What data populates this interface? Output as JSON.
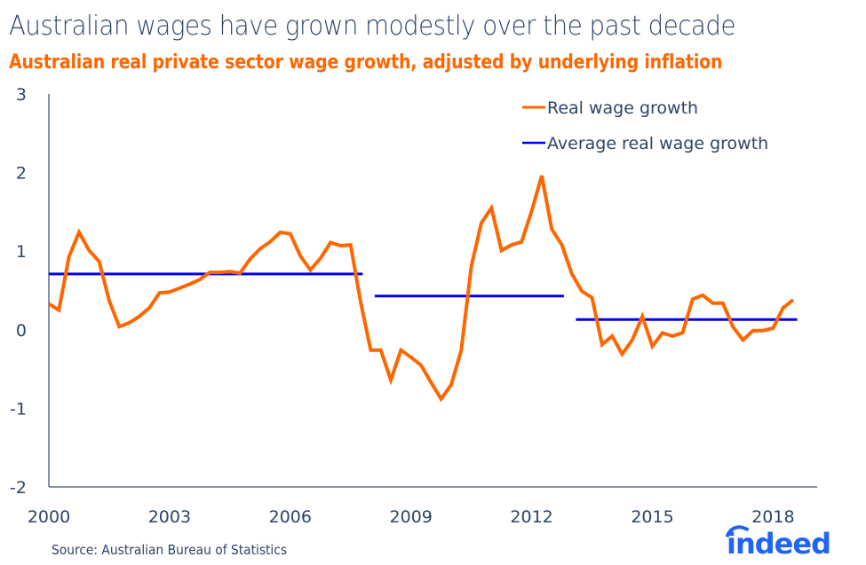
{
  "header": {
    "title": "Australian wages have grown modestly over the past decade",
    "subtitle": "Australian real private sector wage growth, adjusted by underlying inflation"
  },
  "footer": {
    "source": "Source: Australian Bureau of Statistics",
    "logo_text": "indeed",
    "logo_color": "#2164f3"
  },
  "chart_data": {
    "type": "line",
    "title": "Australian real private sector wage growth, adjusted by underlying inflation",
    "xlabel": "",
    "ylabel": "",
    "ylim": [
      -2,
      3
    ],
    "xlim": [
      2000.0,
      2019.0
    ],
    "yticks": [
      "3",
      "2",
      "1",
      "0",
      "-1",
      "-2"
    ],
    "ytick_values": [
      3,
      2,
      1,
      0,
      -1,
      -2
    ],
    "xticks": [
      "2000",
      "2003",
      "2006",
      "2009",
      "2012",
      "2015",
      "2018"
    ],
    "xtick_values": [
      2000,
      2003,
      2006,
      2009,
      2012,
      2015,
      2018
    ],
    "grid": false,
    "legend": {
      "position": "top-right",
      "entries": [
        "Real wage growth",
        "Average real wage growth"
      ]
    },
    "series": [
      {
        "name": "Real wage growth",
        "color": "#ff6600",
        "x": [
          2000.0,
          2000.25,
          2000.5,
          2000.75,
          2001.0,
          2001.25,
          2001.5,
          2001.75,
          2002.0,
          2002.25,
          2002.5,
          2002.75,
          2003.0,
          2003.25,
          2003.5,
          2003.75,
          2004.0,
          2004.25,
          2004.5,
          2004.75,
          2005.0,
          2005.25,
          2005.5,
          2005.75,
          2006.0,
          2006.25,
          2006.5,
          2006.75,
          2007.0,
          2007.25,
          2007.5,
          2007.75,
          2008.0,
          2008.25,
          2008.5,
          2008.75,
          2009.0,
          2009.25,
          2009.5,
          2009.75,
          2010.0,
          2010.25,
          2010.5,
          2010.75,
          2011.0,
          2011.25,
          2011.5,
          2011.75,
          2012.0,
          2012.25,
          2012.5,
          2012.75,
          2013.0,
          2013.25,
          2013.5,
          2013.75,
          2014.0,
          2014.25,
          2014.5,
          2014.75,
          2015.0,
          2015.25,
          2015.5,
          2015.75,
          2016.0,
          2016.25,
          2016.5,
          2016.75,
          2017.0,
          2017.25,
          2017.5,
          2017.75,
          2018.0,
          2018.25,
          2018.5
        ],
        "values": [
          0.33,
          0.25,
          0.93,
          1.24,
          1.01,
          0.87,
          0.37,
          0.04,
          0.09,
          0.17,
          0.28,
          0.47,
          0.48,
          0.53,
          0.58,
          0.64,
          0.73,
          0.73,
          0.74,
          0.72,
          0.9,
          1.03,
          1.12,
          1.24,
          1.22,
          0.94,
          0.76,
          0.91,
          1.11,
          1.07,
          1.08,
          0.35,
          -0.26,
          -0.26,
          -0.64,
          -0.26,
          -0.35,
          -0.45,
          -0.67,
          -0.88,
          -0.7,
          -0.26,
          0.81,
          1.36,
          1.55,
          1.01,
          1.08,
          1.12,
          1.51,
          1.96,
          1.28,
          1.08,
          0.71,
          0.49,
          0.41,
          -0.19,
          -0.08,
          -0.31,
          -0.13,
          0.17,
          -0.21,
          -0.04,
          -0.08,
          -0.04,
          0.39,
          0.44,
          0.34,
          0.34,
          0.04,
          -0.13,
          -0.01,
          -0.01,
          0.02,
          0.28,
          0.38
        ]
      },
      {
        "name": "Average real wage growth",
        "color": "#0000ee",
        "segments": [
          {
            "x": [
              2000.0,
              2007.8
            ],
            "value": 0.71
          },
          {
            "x": [
              2008.1,
              2012.8
            ],
            "value": 0.43
          },
          {
            "x": [
              2013.1,
              2018.6
            ],
            "value": 0.13
          }
        ]
      }
    ]
  }
}
